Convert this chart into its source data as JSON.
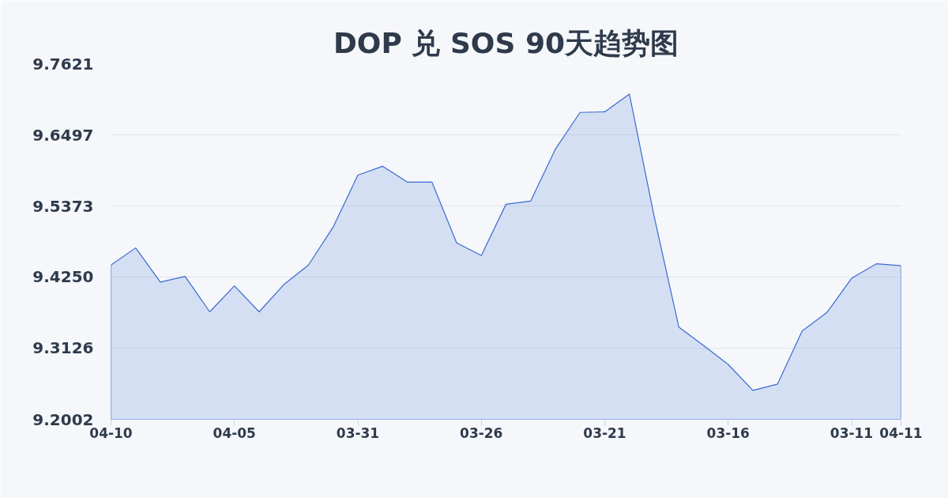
{
  "chart_data": {
    "type": "area",
    "title": "DOP 兑 SOS 90天趋势图",
    "categories": [
      "04-10",
      null,
      null,
      null,
      null,
      "04-05",
      null,
      null,
      null,
      null,
      "03-31",
      null,
      null,
      null,
      null,
      "03-26",
      null,
      null,
      null,
      null,
      "03-21",
      null,
      null,
      null,
      null,
      "03-16",
      null,
      null,
      null,
      null,
      "03-11",
      null,
      "04-11"
    ],
    "values": [
      9.444,
      9.471,
      9.417,
      9.426,
      9.37,
      9.411,
      9.37,
      9.413,
      9.444,
      9.504,
      9.586,
      9.6,
      9.575,
      9.575,
      9.479,
      9.459,
      9.54,
      9.545,
      9.627,
      9.685,
      9.686,
      9.714,
      9.521,
      9.346,
      9.317,
      9.287,
      9.246,
      9.256,
      9.34,
      9.369,
      9.423,
      9.446,
      9.443
    ],
    "color": "#3a6bd0",
    "ylim": [
      9.2002,
      9.7621
    ],
    "yticks": [
      9.2002,
      9.3126,
      {
        "value": 9.425,
        "label": "9.4250"
      },
      9.5373,
      9.6497,
      9.7621
    ],
    "grid": "y"
  }
}
